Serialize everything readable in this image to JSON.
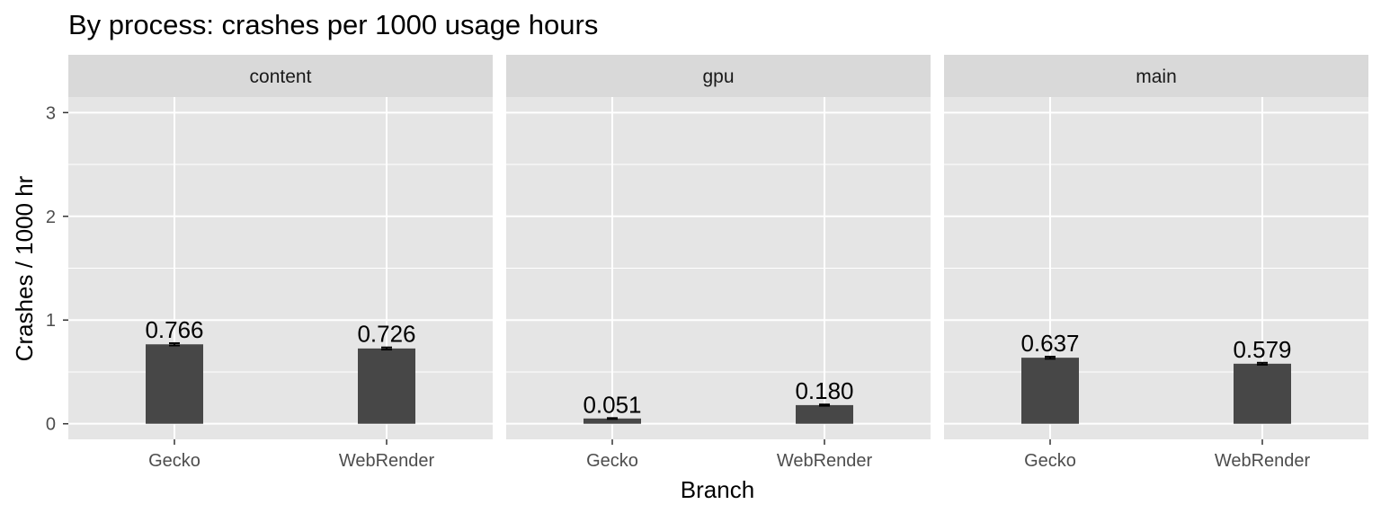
{
  "chart_data": {
    "type": "bar",
    "title": "By process: crashes per 1000 usage hours",
    "xlabel": "Branch",
    "ylabel": "Crashes / 1000 hr",
    "ylim": [
      -0.15,
      3.15
    ],
    "yticks": [
      0,
      1,
      2,
      3
    ],
    "categories": [
      "Gecko",
      "WebRender"
    ],
    "grid": true,
    "legend": "none",
    "colors": {
      "bar": "#474747",
      "panel": "#e5e5e5",
      "strip": "#d9d9d9",
      "grid": "#ffffff",
      "errorbar": "#000000"
    },
    "panels": [
      {
        "name": "content",
        "values": [
          0.766,
          0.726
        ],
        "labels": [
          "0.766",
          "0.726"
        ],
        "error_low": [
          0.755,
          0.716
        ],
        "error_high": [
          0.777,
          0.736
        ]
      },
      {
        "name": "gpu",
        "values": [
          0.051,
          0.18
        ],
        "labels": [
          "0.051",
          "0.180"
        ],
        "error_low": [
          0.047,
          0.174
        ],
        "error_high": [
          0.055,
          0.186
        ]
      },
      {
        "name": "main",
        "values": [
          0.637,
          0.579
        ],
        "labels": [
          "0.637",
          "0.579"
        ],
        "error_low": [
          0.627,
          0.57
        ],
        "error_high": [
          0.647,
          0.588
        ]
      }
    ]
  }
}
